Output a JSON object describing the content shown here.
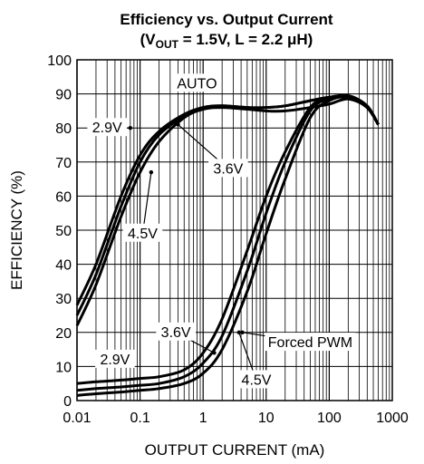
{
  "chart_data": {
    "type": "line",
    "title": "Efficiency vs. Output Current",
    "subtitle_parts": {
      "lead": "(V",
      "sub": "OUT",
      "tail": " = 1.5V, L = 2.2 μH)"
    },
    "xlabel": "OUTPUT CURRENT (mA)",
    "ylabel": "EFFICIENCY (%)",
    "x_scale": "log",
    "xlim": [
      0.01,
      1000
    ],
    "ylim": [
      0,
      100
    ],
    "x_ticks": [
      {
        "value": 0.01,
        "label": "0.01"
      },
      {
        "value": 0.1,
        "label": "0.1"
      },
      {
        "value": 1,
        "label": "1"
      },
      {
        "value": 10,
        "label": "10"
      },
      {
        "value": 100,
        "label": "100"
      },
      {
        "value": 1000,
        "label": "1000"
      }
    ],
    "y_ticks": [
      0,
      10,
      20,
      30,
      40,
      50,
      60,
      70,
      80,
      90,
      100
    ],
    "grid": true,
    "series": [
      {
        "mode": "AUTO",
        "vin": "2.9V",
        "x": [
          0.01,
          0.02,
          0.05,
          0.1,
          0.2,
          0.5,
          1,
          2,
          5,
          10,
          20,
          50,
          100,
          200,
          400,
          600
        ],
        "y": [
          28,
          40,
          60,
          72,
          79,
          84,
          86,
          86.5,
          86,
          86,
          86.5,
          88,
          89,
          89,
          86,
          81
        ]
      },
      {
        "mode": "AUTO",
        "vin": "3.6V",
        "x": [
          0.01,
          0.02,
          0.05,
          0.1,
          0.2,
          0.5,
          1,
          2,
          5,
          10,
          20,
          50,
          100,
          200,
          400,
          600
        ],
        "y": [
          25,
          37,
          57,
          70,
          78,
          83.5,
          86,
          86.5,
          86,
          86,
          86.5,
          88,
          89,
          89.5,
          86.5,
          81
        ]
      },
      {
        "mode": "AUTO",
        "vin": "4.5V",
        "x": [
          0.01,
          0.02,
          0.05,
          0.1,
          0.2,
          0.5,
          1,
          2,
          5,
          10,
          20,
          50,
          100,
          200,
          400,
          600
        ],
        "y": [
          22,
          34,
          54,
          67,
          76,
          83,
          85.5,
          86,
          85.5,
          85,
          85,
          86,
          87,
          88.5,
          86,
          81
        ]
      },
      {
        "mode": "Forced PWM",
        "vin": "2.9V",
        "x": [
          0.01,
          0.02,
          0.05,
          0.1,
          0.2,
          0.5,
          1,
          2,
          5,
          10,
          20,
          50,
          100,
          200,
          400,
          600
        ],
        "y": [
          5,
          5.5,
          6,
          6.5,
          7,
          9,
          14,
          24,
          44,
          60,
          73,
          86,
          89,
          89,
          86,
          81
        ]
      },
      {
        "mode": "Forced PWM",
        "vin": "3.6V",
        "x": [
          0.01,
          0.02,
          0.05,
          0.1,
          0.2,
          0.5,
          1,
          2,
          5,
          10,
          20,
          50,
          100,
          200,
          400,
          600
        ],
        "y": [
          3,
          3.5,
          4,
          4.5,
          5,
          7,
          11,
          19,
          38,
          55,
          70,
          85,
          88.5,
          89,
          86,
          81
        ]
      },
      {
        "mode": "Forced PWM",
        "vin": "4.5V",
        "x": [
          0.01,
          0.02,
          0.05,
          0.1,
          0.2,
          0.5,
          1,
          2,
          5,
          10,
          20,
          50,
          100,
          200,
          400,
          600
        ],
        "y": [
          1.5,
          2,
          2.5,
          3,
          3.5,
          5,
          8,
          15,
          32,
          49,
          65,
          83,
          88,
          89,
          86,
          81
        ]
      }
    ],
    "annotations": [
      {
        "text": "AUTO",
        "x": 0.8,
        "y": 93
      },
      {
        "text": "2.9V",
        "x": 0.03,
        "y": 80,
        "arrow_to": [
          0.07,
          80
        ]
      },
      {
        "text": "3.6V",
        "x": 2.5,
        "y": 68,
        "arrow_to": [
          0.4,
          81
        ]
      },
      {
        "text": "4.5V",
        "x": 0.11,
        "y": 49,
        "arrow_to": [
          0.15,
          67
        ]
      },
      {
        "text": "Forced PWM",
        "x": 50,
        "y": 17,
        "arrow_to": [
          4.2,
          20
        ]
      },
      {
        "text": "3.6V",
        "x": 0.37,
        "y": 20,
        "arrow_to": [
          1.5,
          14
        ]
      },
      {
        "text": "2.9V",
        "x": 0.04,
        "y": 12
      },
      {
        "text": "4.5V",
        "x": 7,
        "y": 6,
        "arrow_to": [
          3.7,
          20
        ]
      }
    ]
  }
}
